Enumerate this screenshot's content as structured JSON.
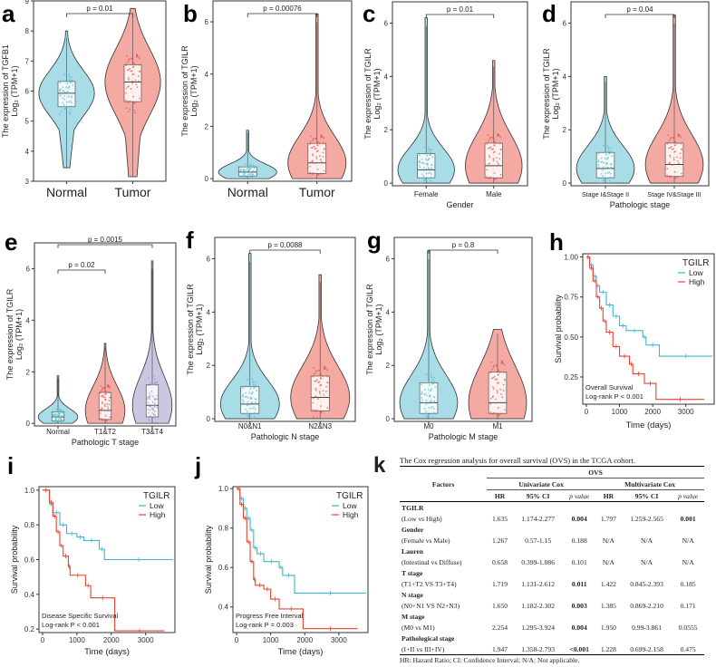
{
  "chart_data": [
    {
      "id": "a",
      "type": "violin",
      "ylabel": [
        "The expression of TGFB1",
        "Log₂ (TPM+1)"
      ],
      "xlabel": "",
      "ylim": [
        3,
        9
      ],
      "yticks": [
        3,
        4,
        5,
        6,
        7,
        8,
        9
      ],
      "groups": [
        {
          "name": "Normal",
          "min": 3.45,
          "q1": 5.48,
          "median": 5.93,
          "q3": 6.32,
          "max": 8.0,
          "color": "#a8dde8"
        },
        {
          "name": "Tumor",
          "min": 3.15,
          "q1": 5.65,
          "median": 6.3,
          "q3": 6.88,
          "max": 8.75,
          "color": "#f4aaa3"
        }
      ],
      "comparisons": [
        {
          "from": "Normal",
          "to": "Tumor",
          "label": "p = 0.01"
        }
      ]
    },
    {
      "id": "b",
      "type": "violin",
      "ylabel": [
        "The expression of TGILR",
        "Log₂ (TPM+1)"
      ],
      "xlabel": "",
      "ylim": [
        -0.1,
        6.8
      ],
      "yticks": [
        0,
        2,
        4,
        6
      ],
      "groups": [
        {
          "name": "Normal",
          "min": 0,
          "q1": 0.1,
          "median": 0.25,
          "q3": 0.45,
          "max": 1.85,
          "color": "#a8dde8"
        },
        {
          "name": "Tumor",
          "min": 0,
          "q1": 0.2,
          "median": 0.6,
          "q3": 1.35,
          "max": 6.3,
          "color": "#f4aaa3"
        }
      ],
      "comparisons": [
        {
          "from": "Normal",
          "to": "Tumor",
          "label": "p = 0.00076"
        }
      ]
    },
    {
      "id": "c",
      "type": "violin",
      "ylabel": [
        "The expression of TGILR",
        "Log₂ (TPM+1)"
      ],
      "xlabel": "Gender",
      "ylim": [
        -0.1,
        6.8
      ],
      "yticks": [
        0,
        2,
        4,
        6
      ],
      "groups": [
        {
          "name": "Female",
          "min": 0,
          "q1": 0.2,
          "median": 0.5,
          "q3": 1.1,
          "max": 6.2,
          "color": "#a8dde8"
        },
        {
          "name": "Male",
          "min": 0,
          "q1": 0.2,
          "median": 0.65,
          "q3": 1.5,
          "max": 4.6,
          "color": "#f4aaa3"
        }
      ],
      "comparisons": [
        {
          "from": "Female",
          "to": "Male",
          "label": "p = 0.01"
        }
      ]
    },
    {
      "id": "d",
      "type": "violin",
      "ylabel": [
        "The expression of TGILR",
        "Log₂ (TPM+1)"
      ],
      "xlabel": "Pathologic stage",
      "ylim": [
        -0.1,
        6.8
      ],
      "yticks": [
        0,
        2,
        4,
        6
      ],
      "groups": [
        {
          "name": "Stage I&Stage II",
          "min": 0,
          "q1": 0.2,
          "median": 0.55,
          "q3": 1.15,
          "max": 4.0,
          "color": "#a8dde8"
        },
        {
          "name": "Stage IV&Stage III",
          "min": 0,
          "q1": 0.25,
          "median": 0.7,
          "q3": 1.5,
          "max": 6.3,
          "color": "#f4aaa3"
        }
      ],
      "comparisons": [
        {
          "from": "Stage I&Stage II",
          "to": "Stage IV&Stage III",
          "label": "p = 0.04"
        }
      ]
    },
    {
      "id": "e",
      "type": "violin",
      "ylabel": [
        "The expression of TGILR",
        "Log₂ (TPM+1)"
      ],
      "xlabel": "Pathologic T stage",
      "ylim": [
        -0.1,
        7.0
      ],
      "yticks": [
        0,
        2,
        4,
        6
      ],
      "groups": [
        {
          "name": "Normal",
          "min": 0,
          "q1": 0.1,
          "median": 0.25,
          "q3": 0.45,
          "max": 1.85,
          "color": "#a8dde8"
        },
        {
          "name": "T1&T2",
          "min": 0,
          "q1": 0.15,
          "median": 0.5,
          "q3": 1.2,
          "max": 3.1,
          "color": "#f4aaa3"
        },
        {
          "name": "T3&T4",
          "min": 0,
          "q1": 0.25,
          "median": 0.7,
          "q3": 1.5,
          "max": 6.3,
          "color": "#c9c8e0"
        }
      ],
      "comparisons": [
        {
          "from": "Normal",
          "to": "T1&T2",
          "label": "p = 0.02"
        },
        {
          "from": "Normal",
          "to": "T3&T4",
          "label": "p = 0.0015"
        }
      ]
    },
    {
      "id": "f",
      "type": "violin",
      "ylabel": [
        "The expression of TGILR",
        "Log₂ (TPM+1)"
      ],
      "xlabel": "Pathologic N stage",
      "ylim": [
        -0.1,
        6.8
      ],
      "yticks": [
        0,
        2,
        4,
        6
      ],
      "groups": [
        {
          "name": "N0&N1",
          "min": 0,
          "q1": 0.2,
          "median": 0.55,
          "q3": 1.2,
          "max": 6.2,
          "color": "#a8dde8"
        },
        {
          "name": "N2&N3",
          "min": 0,
          "q1": 0.3,
          "median": 0.8,
          "q3": 1.6,
          "max": 5.4,
          "color": "#f4aaa3"
        }
      ],
      "comparisons": [
        {
          "from": "N0&N1",
          "to": "N2&N3",
          "label": "p = 0.0088"
        }
      ]
    },
    {
      "id": "g",
      "type": "violin",
      "ylabel": [
        "The expression of TGILR",
        "Log₂ (TPM+1)"
      ],
      "xlabel": "Pathologic M stage",
      "ylim": [
        -0.1,
        6.8
      ],
      "yticks": [
        0,
        2,
        4,
        6
      ],
      "groups": [
        {
          "name": "M0",
          "min": 0,
          "q1": 0.2,
          "median": 0.6,
          "q3": 1.35,
          "max": 6.3,
          "color": "#a8dde8"
        },
        {
          "name": "M1",
          "min": 0,
          "q1": 0.2,
          "median": 0.6,
          "q3": 1.75,
          "max": 3.35,
          "color": "#f4aaa3"
        }
      ],
      "comparisons": [
        {
          "from": "M0",
          "to": "M1",
          "label": "p = 0.8"
        }
      ]
    },
    {
      "id": "h",
      "type": "line",
      "subtype": "kaplan-meier",
      "xlabel": "Time (days)",
      "ylabel": "Survival probability",
      "xlim": [
        0,
        3800
      ],
      "ylim": [
        0.08,
        1.02
      ],
      "xticks": [
        0,
        1000,
        2000,
        3000
      ],
      "yticks": [
        0.25,
        0.5,
        0.75,
        1.0
      ],
      "ytick_labels": [
        "0.25",
        "0.50",
        "0.75",
        "1.00"
      ],
      "legend_title": "TGILR",
      "legend_position": "top-right",
      "annotation": [
        "Overall Survival",
        "Log-rank  P < 0.001"
      ],
      "series": [
        {
          "name": "Low",
          "color": "#3fb5cf",
          "points": [
            [
              0,
              1
            ],
            [
              100,
              0.95
            ],
            [
              200,
              0.88
            ],
            [
              300,
              0.82
            ],
            [
              400,
              0.78
            ],
            [
              600,
              0.7
            ],
            [
              800,
              0.63
            ],
            [
              1000,
              0.57
            ],
            [
              1200,
              0.54
            ],
            [
              1700,
              0.5
            ],
            [
              1800,
              0.45
            ],
            [
              2200,
              0.38
            ],
            [
              3800,
              0.38
            ]
          ]
        },
        {
          "name": "High",
          "color": "#e8422f",
          "points": [
            [
              0,
              1
            ],
            [
              100,
              0.93
            ],
            [
              200,
              0.85
            ],
            [
              300,
              0.75
            ],
            [
              400,
              0.68
            ],
            [
              500,
              0.6
            ],
            [
              600,
              0.53
            ],
            [
              800,
              0.44
            ],
            [
              1000,
              0.38
            ],
            [
              1300,
              0.33
            ],
            [
              1400,
              0.27
            ],
            [
              1750,
              0.21
            ],
            [
              2100,
              0.11
            ],
            [
              3550,
              0.11
            ]
          ]
        }
      ]
    },
    {
      "id": "i",
      "type": "line",
      "subtype": "kaplan-meier",
      "xlabel": "Time (days)",
      "ylabel": "Survival probability",
      "xlim": [
        0,
        3800
      ],
      "ylim": [
        0.18,
        1.02
      ],
      "xticks": [
        0,
        1000,
        2000,
        3000
      ],
      "yticks": [
        0.2,
        0.4,
        0.6,
        0.8,
        1.0
      ],
      "ytick_labels": [
        "0.2",
        "0.4",
        "0.6",
        "0.8",
        "1.0"
      ],
      "legend_title": "TGILR",
      "legend_position": "top-right",
      "annotation": [
        "Disease Specific Survival",
        "Log-rank  P < 0.001"
      ],
      "series": [
        {
          "name": "Low",
          "color": "#3fb5cf",
          "points": [
            [
              0,
              1
            ],
            [
              200,
              0.92
            ],
            [
              300,
              0.87
            ],
            [
              500,
              0.8
            ],
            [
              700,
              0.75
            ],
            [
              1000,
              0.73
            ],
            [
              1200,
              0.71
            ],
            [
              1650,
              0.66
            ],
            [
              1800,
              0.6
            ],
            [
              3800,
              0.6
            ]
          ]
        },
        {
          "name": "High",
          "color": "#e8422f",
          "points": [
            [
              0,
              1
            ],
            [
              200,
              0.93
            ],
            [
              300,
              0.85
            ],
            [
              400,
              0.76
            ],
            [
              500,
              0.68
            ],
            [
              600,
              0.62
            ],
            [
              750,
              0.56
            ],
            [
              800,
              0.51
            ],
            [
              1250,
              0.45
            ],
            [
              1400,
              0.38
            ],
            [
              2100,
              0.19
            ],
            [
              3550,
              0.19
            ]
          ]
        }
      ]
    },
    {
      "id": "j",
      "type": "line",
      "subtype": "kaplan-meier",
      "xlabel": "Time (days)",
      "ylabel": "Survival probability",
      "xlim": [
        0,
        3800
      ],
      "ylim": [
        0.27,
        1.01
      ],
      "xticks": [
        0,
        1000,
        2000,
        3000
      ],
      "yticks": [
        0.4,
        0.6,
        0.8,
        1.0
      ],
      "ytick_labels": [
        "0.4",
        "0.6",
        "0.8",
        "1.0"
      ],
      "legend_title": "TGILR",
      "legend_position": "top-right",
      "annotation": [
        "Progress Free Interval",
        "Log-rank  P = 0.003"
      ],
      "series": [
        {
          "name": "Low",
          "color": "#3fb5cf",
          "points": [
            [
              0,
              1
            ],
            [
              100,
              0.95
            ],
            [
              200,
              0.9
            ],
            [
              300,
              0.85
            ],
            [
              400,
              0.79
            ],
            [
              500,
              0.7
            ],
            [
              600,
              0.67
            ],
            [
              800,
              0.63
            ],
            [
              1250,
              0.6
            ],
            [
              1350,
              0.56
            ],
            [
              1700,
              0.47
            ],
            [
              3800,
              0.47
            ]
          ]
        },
        {
          "name": "High",
          "color": "#e8422f",
          "points": [
            [
              0,
              1
            ],
            [
              100,
              0.92
            ],
            [
              200,
              0.85
            ],
            [
              300,
              0.73
            ],
            [
              400,
              0.63
            ],
            [
              500,
              0.54
            ],
            [
              550,
              0.51
            ],
            [
              800,
              0.49
            ],
            [
              1000,
              0.44
            ],
            [
              1250,
              0.39
            ],
            [
              1950,
              0.29
            ],
            [
              3550,
              0.29
            ]
          ]
        }
      ]
    },
    {
      "id": "k",
      "type": "table",
      "title": "The Cox regression analysis for overall survival (OVS) in the TCGA cohort.",
      "header": {
        "factors": "Factors",
        "ovs": "OVS",
        "univariate": "Univariate Cox",
        "multivariate": "Multivariate Cox",
        "cols": [
          "HR",
          "95% CI",
          "p value",
          "HR",
          "95% CI",
          "p value"
        ]
      },
      "rows": [
        {
          "factor": "TGILR",
          "comparison": "(Low vs High)",
          "values": [
            "1.635",
            "1.174-2.277",
            "0.004",
            "1.797",
            "1.259-2.565",
            "0.001"
          ],
          "bold": [
            2,
            5
          ]
        },
        {
          "factor": "Gender",
          "comparison": "(Female vs Male)",
          "values": [
            "1.267",
            "0.57-1.15",
            "0.188",
            "N/A",
            "N/A",
            "N/A"
          ],
          "bold": []
        },
        {
          "factor": "Lauren",
          "comparison": "(Intestinal vs Diffuse)",
          "values": [
            "0.658",
            "0.399-1.086",
            "0.101",
            "N/A",
            "N/A",
            "N/A"
          ],
          "bold": []
        },
        {
          "factor": "T stage",
          "comparison": "(T1+T2 VS T3+T4)",
          "values": [
            "1.719",
            "1.131-2.612",
            "0.011",
            "1.422",
            "0.845-2.393",
            "0.185"
          ],
          "bold": [
            2
          ]
        },
        {
          "factor": "N stage",
          "comparison": "(N0+N1 VS N2+N3)",
          "values": [
            "1.650",
            "1.182-2.302",
            "0.003",
            "1.385",
            "0.869-2.210",
            "0.171"
          ],
          "bold": [
            2
          ]
        },
        {
          "factor": "M stage",
          "comparison": "(M0 vs M1)",
          "values": [
            "2.254",
            "1.295-3.924",
            "0.004",
            "1.950",
            "0.99-3.861",
            "0.0555"
          ],
          "bold": [
            2
          ]
        },
        {
          "factor": "Pathological stage",
          "comparison": "(I+II vs III+IV)",
          "values": [
            "1.947",
            "1.358-2.793",
            "<0.001",
            "1.228",
            "0.699-2.158",
            "0.475"
          ],
          "bold": [
            2
          ]
        }
      ],
      "footnote": "HR: Hazard Ratio; CI: Confidence Interval; N/A: Not applicable."
    }
  ],
  "panel_letters": [
    "a",
    "b",
    "c",
    "d",
    "e",
    "f",
    "g",
    "h",
    "i",
    "j",
    "k"
  ]
}
